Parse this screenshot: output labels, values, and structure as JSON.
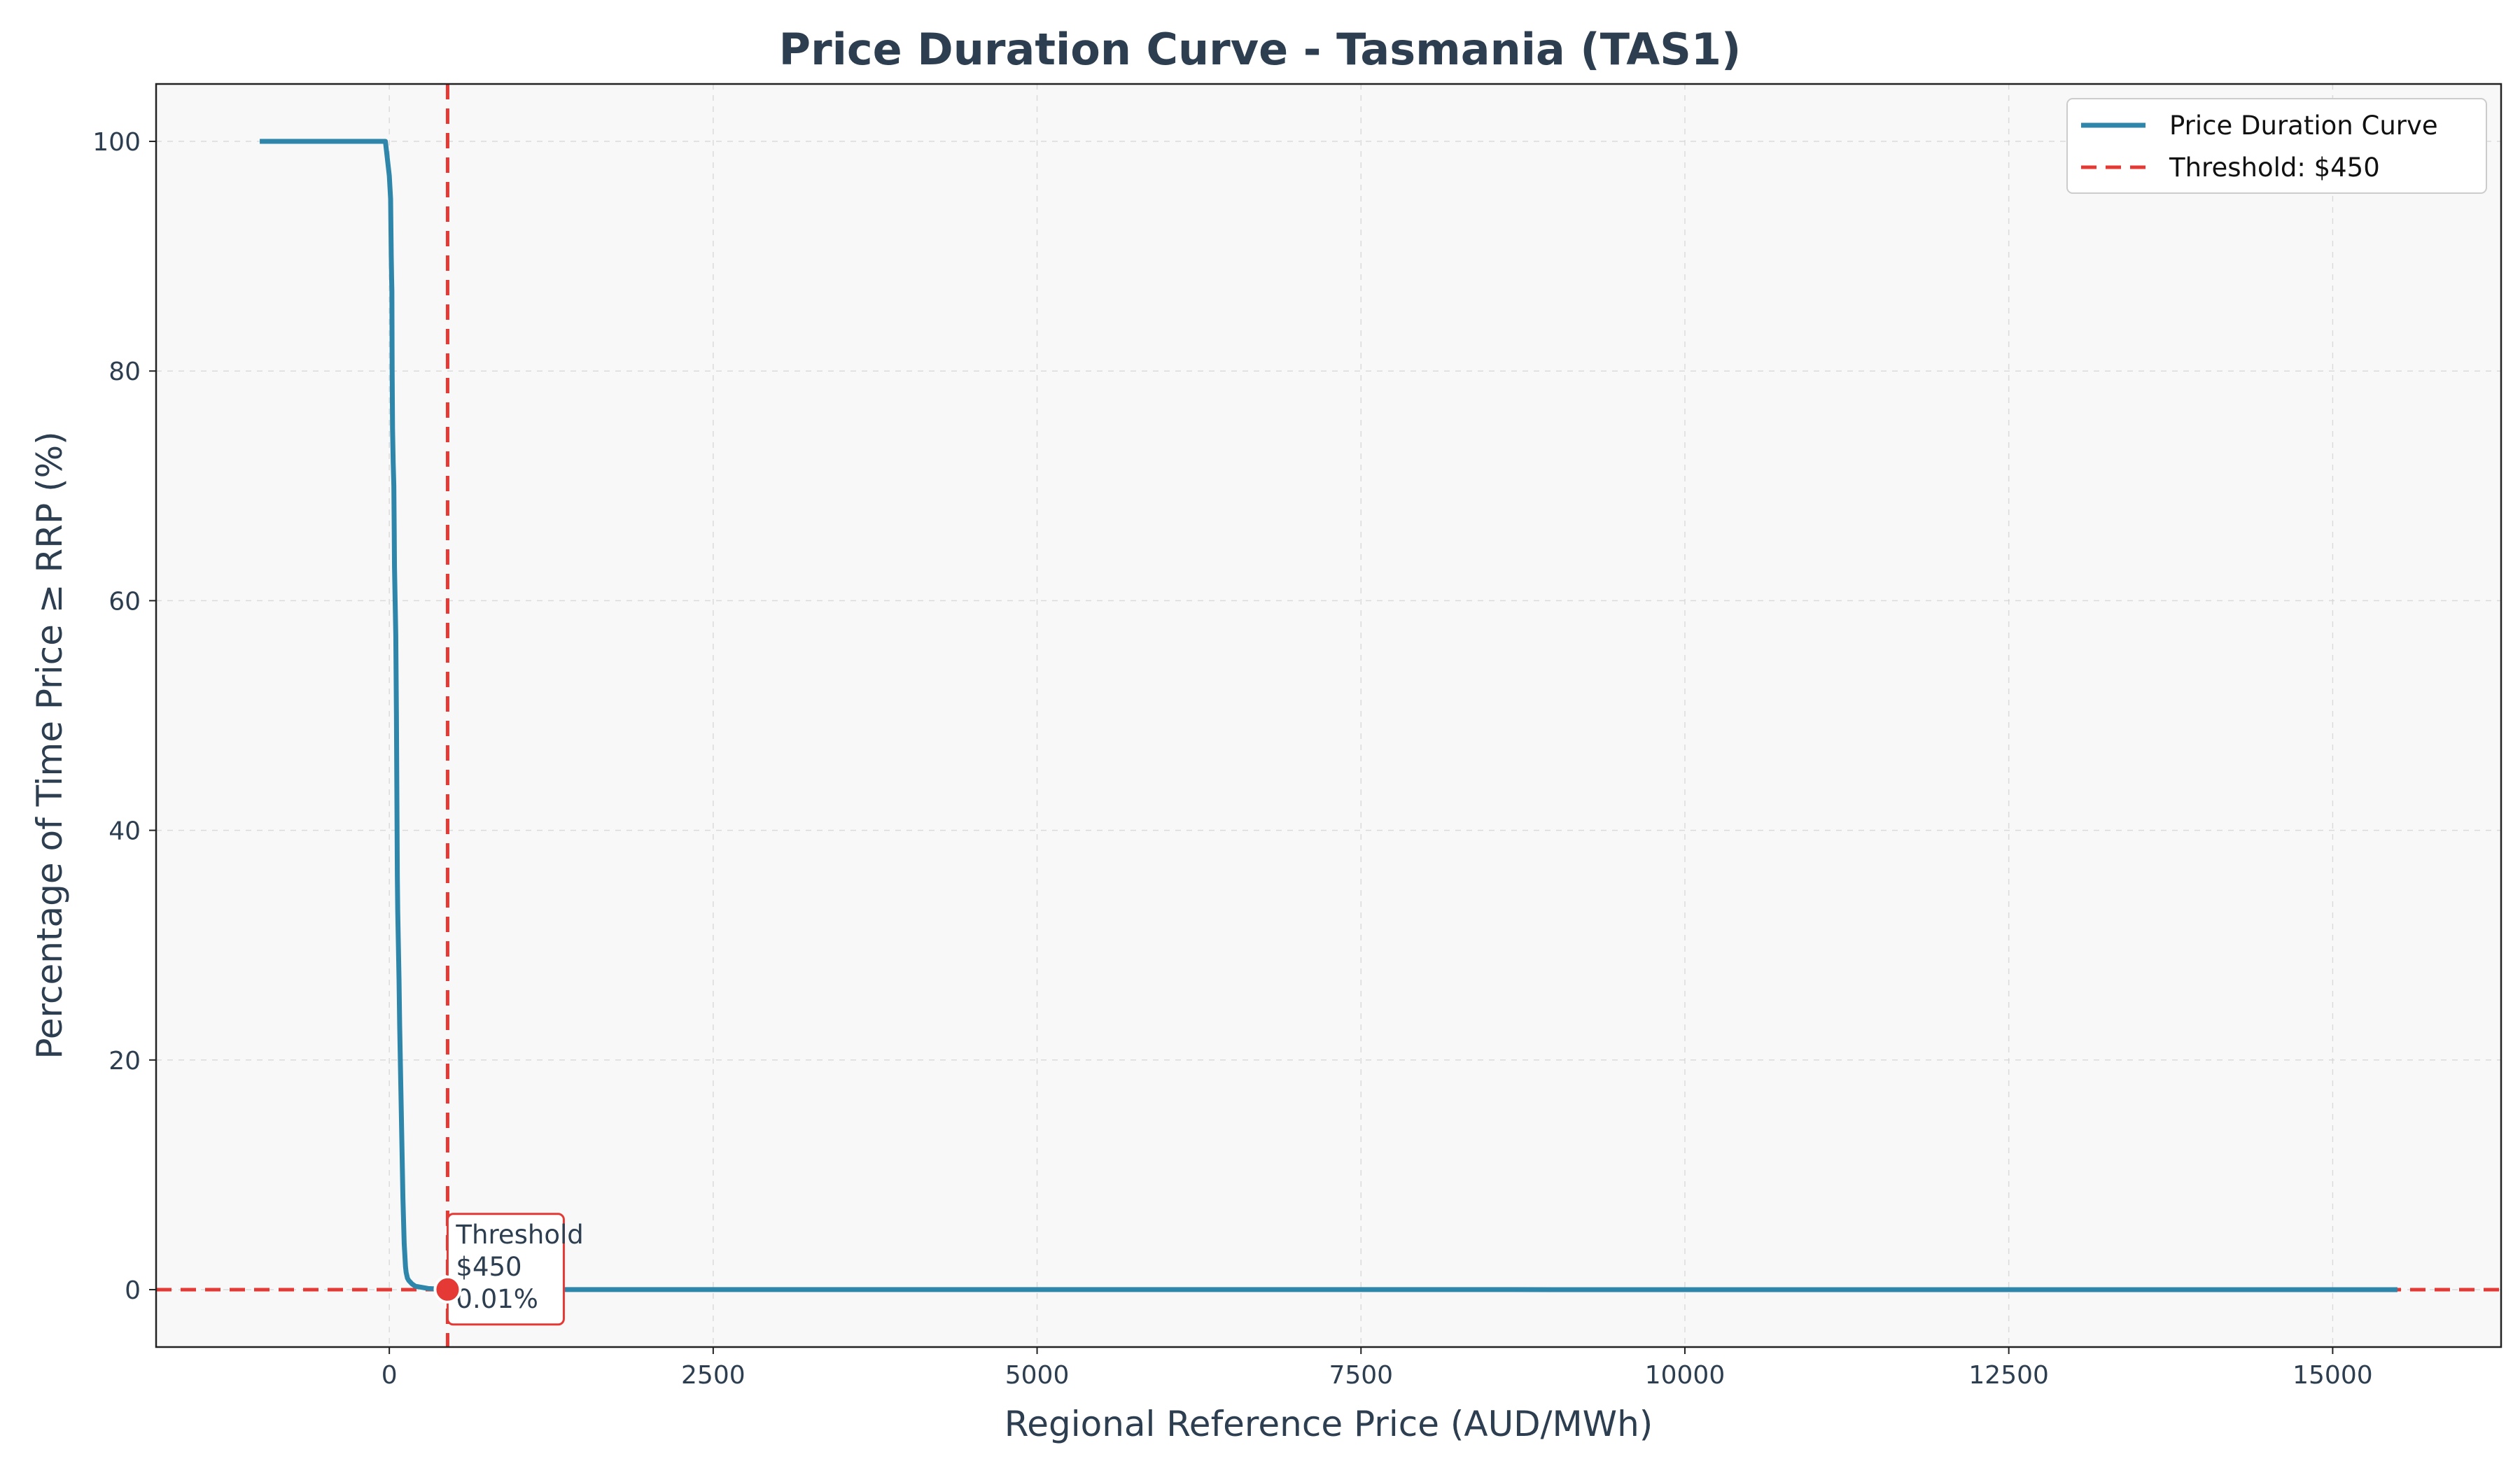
{
  "chart_data": {
    "type": "line",
    "title": "Price Duration Curve - Tasmania (TAS1)",
    "xlabel": "Regional Reference Price (AUD/MWh)",
    "ylabel": "Percentage of Time Price ≥ RRP (%)",
    "xlim": [
      -1800,
      16300
    ],
    "ylim": [
      -5,
      105
    ],
    "xticks": [
      0,
      2500,
      5000,
      7500,
      10000,
      12500,
      15000
    ],
    "yticks": [
      0,
      20,
      40,
      60,
      80,
      100
    ],
    "grid": true,
    "legend_position": "top-right",
    "series": [
      {
        "name": "Price Duration Curve",
        "color": "#2e86ab",
        "style": "solid",
        "x": [
          -1000,
          -30,
          -10,
          0,
          5,
          10,
          15,
          18,
          20,
          22,
          25,
          30,
          35,
          38,
          40,
          45,
          50,
          55,
          60,
          62,
          65,
          70,
          75,
          80,
          85,
          90,
          95,
          100,
          105,
          110,
          115,
          120,
          125,
          130,
          140,
          150,
          175,
          200,
          300,
          450,
          1000,
          3000,
          6000,
          9000,
          12000,
          15500
        ],
        "y": [
          100,
          100,
          98,
          97,
          96,
          95,
          90,
          88,
          87,
          80,
          75,
          72,
          70,
          66,
          63,
          60,
          57,
          50,
          40,
          36,
          33,
          30,
          27,
          23,
          20,
          17,
          14,
          11,
          8,
          6,
          4,
          3,
          2,
          1.5,
          1,
          0.8,
          0.5,
          0.3,
          0.1,
          0.01,
          0.005,
          0.003,
          0.002,
          0.001,
          0.001,
          0.0005
        ]
      },
      {
        "name": "Threshold: $450",
        "color": "#e53935",
        "style": "dashed",
        "x": [
          450,
          450
        ],
        "y": [
          -5,
          105
        ]
      }
    ],
    "reference_lines": {
      "horizontal_y": 0,
      "color": "#e53935"
    },
    "annotation": {
      "x": 450,
      "y": 0.01,
      "lines": [
        "Threshold",
        "$450",
        "0.01%"
      ],
      "marker_color": "#e53935"
    }
  }
}
